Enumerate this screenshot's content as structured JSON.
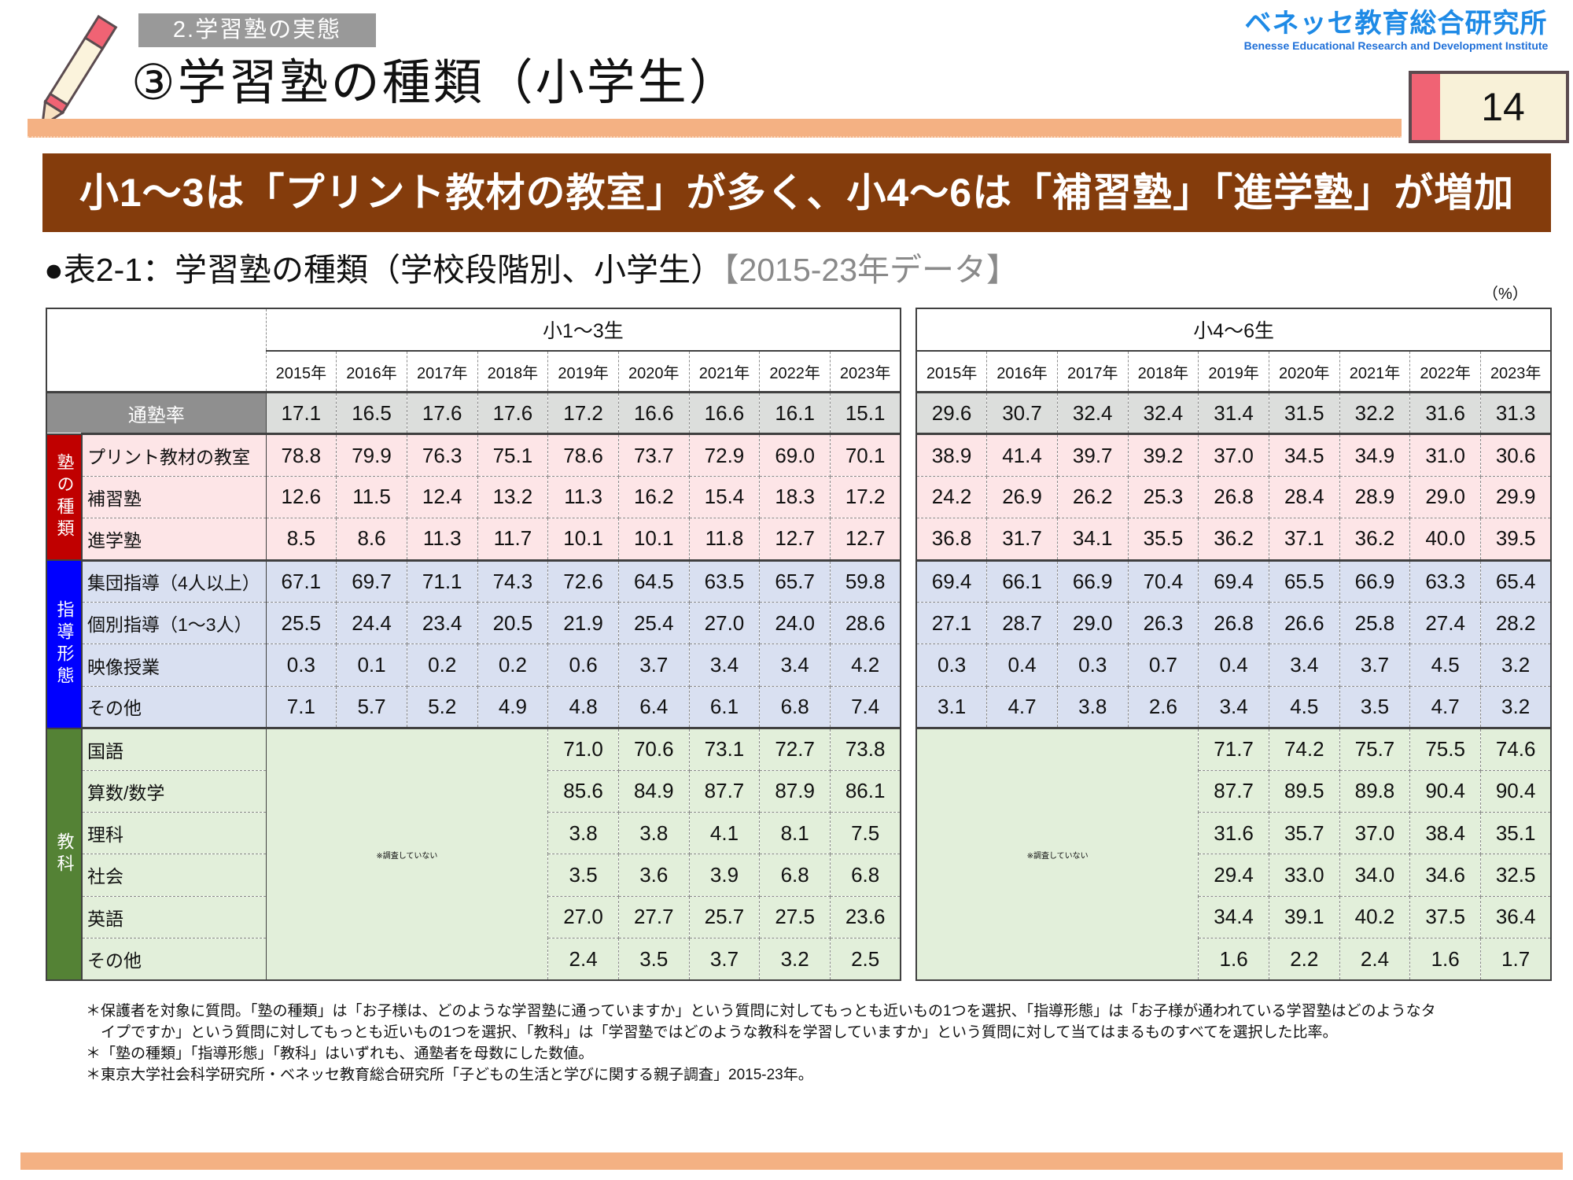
{
  "header": {
    "section_tag": "2.学習塾の実態",
    "title": "③学習塾の種類（小学生）",
    "logo_jp": "ベネッセ教育総合研究所",
    "logo_en": "Benesse Educational Research and Development Institute",
    "page_number": "14"
  },
  "banner": "小1～3は「プリント教材の教室」が多く、小4～6は「補習塾」「進学塾」が増加",
  "subheading": {
    "main": "●表2-1：学習塾の種類（学校段階別、小学生）",
    "data_note": "【2015-23年データ】"
  },
  "colors": {
    "accent_orange": "#f4b183",
    "banner": "#843c0c",
    "logo_blue": "#1e8ae6"
  },
  "table": {
    "unit": "（%）",
    "not_surveyed": "※調査していない",
    "panels": [
      {
        "title": "小1～3生",
        "years": [
          "2015年",
          "2016年",
          "2017年",
          "2018年",
          "2019年",
          "2020年",
          "2021年",
          "2022年",
          "2023年"
        ]
      },
      {
        "title": "小4～6生",
        "years": [
          "2015年",
          "2016年",
          "2017年",
          "2018年",
          "2019年",
          "2020年",
          "2021年",
          "2022年",
          "2023年"
        ]
      }
    ],
    "rate": {
      "label": "通塾率",
      "values": [
        [
          "17.1",
          "16.5",
          "17.6",
          "17.6",
          "17.2",
          "16.6",
          "16.6",
          "16.1",
          "15.1"
        ],
        [
          "29.6",
          "30.7",
          "32.4",
          "32.4",
          "31.4",
          "31.5",
          "32.2",
          "31.6",
          "31.3"
        ]
      ]
    },
    "groups": [
      {
        "label": "塾の種類",
        "color": "#c00000",
        "bg": "#fde5e7",
        "rows": [
          {
            "label": "プリント教材の教室",
            "values": [
              [
                "78.8",
                "79.9",
                "76.3",
                "75.1",
                "78.6",
                "73.7",
                "72.9",
                "69.0",
                "70.1"
              ],
              [
                "38.9",
                "41.4",
                "39.7",
                "39.2",
                "37.0",
                "34.5",
                "34.9",
                "31.0",
                "30.6"
              ]
            ]
          },
          {
            "label": "補習塾",
            "values": [
              [
                "12.6",
                "11.5",
                "12.4",
                "13.2",
                "11.3",
                "16.2",
                "15.4",
                "18.3",
                "17.2"
              ],
              [
                "24.2",
                "26.9",
                "26.2",
                "25.3",
                "26.8",
                "28.4",
                "28.9",
                "29.0",
                "29.9"
              ]
            ]
          },
          {
            "label": "進学塾",
            "values": [
              [
                "8.5",
                "8.6",
                "11.3",
                "11.7",
                "10.1",
                "10.1",
                "11.8",
                "12.7",
                "12.7"
              ],
              [
                "36.8",
                "31.7",
                "34.1",
                "35.5",
                "36.2",
                "37.1",
                "36.2",
                "40.0",
                "39.5"
              ]
            ]
          }
        ]
      },
      {
        "label": "指導形態",
        "color": "#0000ff",
        "bg": "#d9e0f1",
        "rows": [
          {
            "label": "集団指導（4人以上）",
            "values": [
              [
                "67.1",
                "69.7",
                "71.1",
                "74.3",
                "72.6",
                "64.5",
                "63.5",
                "65.7",
                "59.8"
              ],
              [
                "69.4",
                "66.1",
                "66.9",
                "70.4",
                "69.4",
                "65.5",
                "66.9",
                "63.3",
                "65.4"
              ]
            ]
          },
          {
            "label": "個別指導（1～3人）",
            "values": [
              [
                "25.5",
                "24.4",
                "23.4",
                "20.5",
                "21.9",
                "25.4",
                "27.0",
                "24.0",
                "28.6"
              ],
              [
                "27.1",
                "28.7",
                "29.0",
                "26.3",
                "26.8",
                "26.6",
                "25.8",
                "27.4",
                "28.2"
              ]
            ]
          },
          {
            "label": "映像授業",
            "values": [
              [
                "0.3",
                "0.1",
                "0.2",
                "0.2",
                "0.6",
                "3.7",
                "3.4",
                "3.4",
                "4.2"
              ],
              [
                "0.3",
                "0.4",
                "0.3",
                "0.7",
                "0.4",
                "3.4",
                "3.7",
                "4.5",
                "3.2"
              ]
            ]
          },
          {
            "label": "その他",
            "values": [
              [
                "7.1",
                "5.7",
                "5.2",
                "4.9",
                "4.8",
                "6.4",
                "6.1",
                "6.8",
                "7.4"
              ],
              [
                "3.1",
                "4.7",
                "3.8",
                "2.6",
                "3.4",
                "4.5",
                "3.5",
                "4.7",
                "3.2"
              ]
            ]
          }
        ]
      },
      {
        "label": "教科",
        "color": "#548235",
        "bg": "#e2efda",
        "partial": true,
        "rows": [
          {
            "label": "国語",
            "values": [
              [
                "71.0",
                "70.6",
                "73.1",
                "72.7",
                "73.8"
              ],
              [
                "71.7",
                "74.2",
                "75.7",
                "75.5",
                "74.6"
              ]
            ]
          },
          {
            "label": "算数/数学",
            "values": [
              [
                "85.6",
                "84.9",
                "87.7",
                "87.9",
                "86.1"
              ],
              [
                "87.7",
                "89.5",
                "89.8",
                "90.4",
                "90.4"
              ]
            ]
          },
          {
            "label": "理科",
            "values": [
              [
                "3.8",
                "3.8",
                "4.1",
                "8.1",
                "7.5"
              ],
              [
                "31.6",
                "35.7",
                "37.0",
                "38.4",
                "35.1"
              ]
            ]
          },
          {
            "label": "社会",
            "values": [
              [
                "3.5",
                "3.6",
                "3.9",
                "6.8",
                "6.8"
              ],
              [
                "29.4",
                "33.0",
                "34.0",
                "34.6",
                "32.5"
              ]
            ]
          },
          {
            "label": "英語",
            "values": [
              [
                "27.0",
                "27.7",
                "25.7",
                "27.5",
                "23.6"
              ],
              [
                "34.4",
                "39.1",
                "40.2",
                "37.5",
                "36.4"
              ]
            ]
          },
          {
            "label": "その他",
            "values": [
              [
                "2.4",
                "3.5",
                "3.7",
                "3.2",
                "2.5"
              ],
              [
                "1.6",
                "2.2",
                "2.4",
                "1.6",
                "1.7"
              ]
            ]
          }
        ]
      }
    ]
  },
  "notes": [
    "＊保護者を対象に質問。「塾の種類」は「お子様は、どのような学習塾に通っていますか」という質問に対してもっとも近いもの1つを選択、「指導形態」は「お子様が通われている学習塾はどのようなタ",
    "　イプですか」という質問に対してもっとも近いもの1つを選択、「教科」は「学習塾ではどのような教科を学習していますか」という質問に対して当てはまるものすべてを選択した比率。",
    "＊「塾の種類」「指導形態」「教科」はいずれも、通塾者を母数にした数値。",
    "＊東京大学社会科学研究所・ベネッセ教育総合研究所「子どもの生活と学びに関する親子調査」2015-23年。"
  ]
}
